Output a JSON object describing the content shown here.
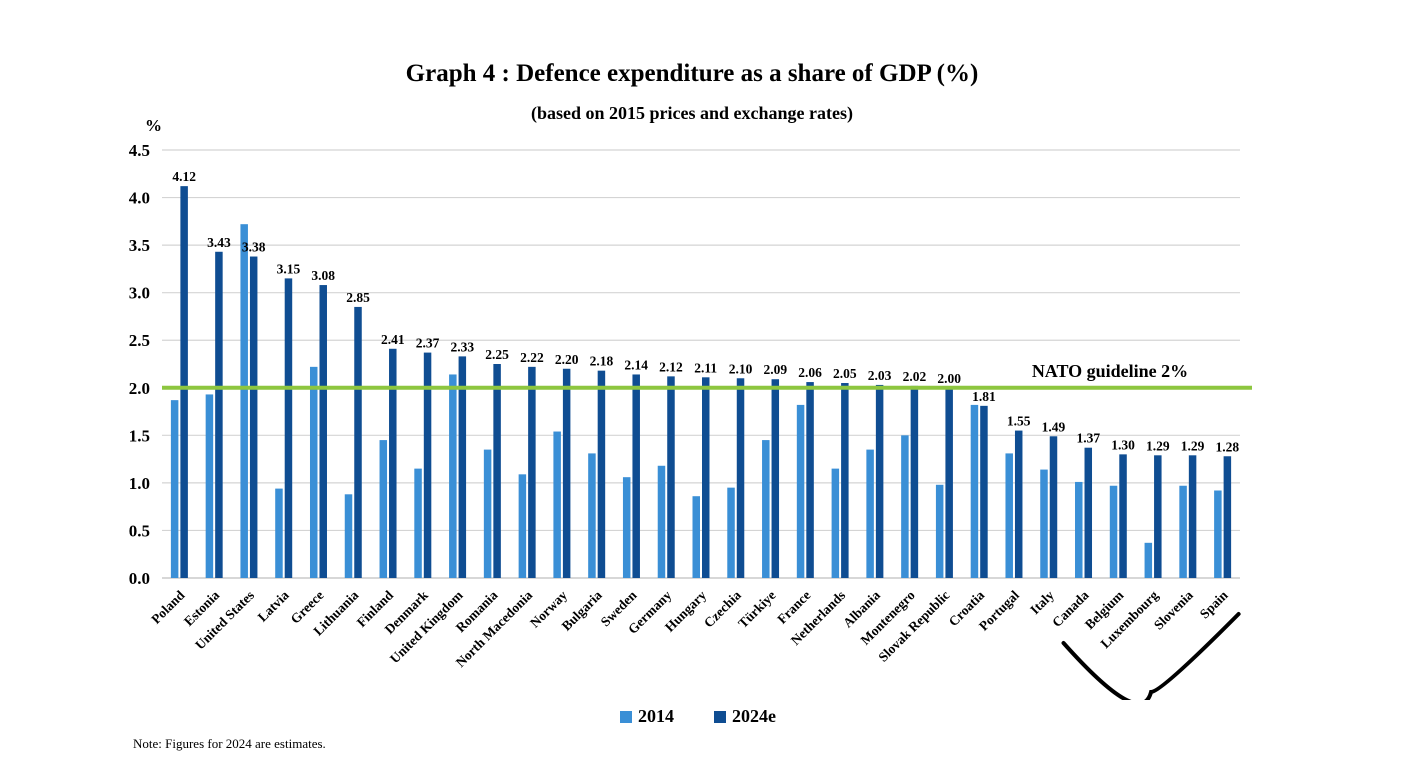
{
  "chart_data": {
    "type": "bar",
    "title": "Graph 4 : Defence expenditure as a share of GDP (%)",
    "subtitle": "(based on 2015 prices and exchange rates)",
    "ylabel": "%",
    "ylim": [
      0,
      4.5
    ],
    "yticks": [
      "0.0",
      "0.5",
      "1.0",
      "1.5",
      "2.0",
      "2.5",
      "3.0",
      "3.5",
      "4.0",
      "4.5"
    ],
    "grid": true,
    "legend_position": "bottom",
    "categories": [
      "Poland",
      "Estonia",
      "United States",
      "Latvia",
      "Greece",
      "Lithuania",
      "Finland",
      "Denmark",
      "United Kingdom",
      "Romania",
      "North Macedonia",
      "Norway",
      "Bulgaria",
      "Sweden",
      "Germany",
      "Hungary",
      "Czechia",
      "Türkiye",
      "France",
      "Netherlands",
      "Albania",
      "Montenegro",
      "Slovak Republic",
      "Croatia",
      "Portugal",
      "Italy",
      "Canada",
      "Belgium",
      "Luxembourg",
      "Slovenia",
      "Spain"
    ],
    "series": [
      {
        "name": "2014",
        "color": "#3a8fd6",
        "values": [
          1.87,
          1.93,
          3.72,
          0.94,
          2.22,
          0.88,
          1.45,
          1.15,
          2.14,
          1.35,
          1.09,
          1.54,
          1.31,
          1.06,
          1.18,
          0.86,
          0.95,
          1.45,
          1.82,
          1.15,
          1.35,
          1.5,
          0.98,
          1.82,
          1.31,
          1.14,
          1.01,
          0.97,
          0.37,
          0.97,
          0.92
        ]
      },
      {
        "name": "2024e",
        "color": "#0f4d92",
        "values": [
          4.12,
          3.43,
          3.38,
          3.15,
          3.08,
          2.85,
          2.41,
          2.37,
          2.33,
          2.25,
          2.22,
          2.2,
          2.18,
          2.14,
          2.12,
          2.11,
          2.1,
          2.09,
          2.06,
          2.05,
          2.03,
          2.02,
          2.0,
          1.81,
          1.55,
          1.49,
          1.37,
          1.3,
          1.29,
          1.29,
          1.28
        ]
      }
    ],
    "data_labels_2024e": [
      "4.12",
      "3.43",
      "3.38",
      "3.15",
      "3.08",
      "2.85",
      "2.41",
      "2.37",
      "2.33",
      "2.25",
      "2.22",
      "2.20",
      "2.18",
      "2.14",
      "2.12",
      "2.11",
      "2.10",
      "2.09",
      "2.06",
      "2.05",
      "2.03",
      "2.02",
      "2.00",
      "1.81",
      "1.55",
      "1.49",
      "1.37",
      "1.30",
      "1.29",
      "1.29",
      "1.28"
    ],
    "reference_line": {
      "value": 2.0,
      "label": "NATO guideline 2%",
      "color": "#8dc63f"
    },
    "annotation": {
      "shape": "curved-underline",
      "color": "#000000",
      "from_category": "Canada",
      "to_category": "Spain"
    }
  },
  "note": "Note: Figures for 2024 are estimates."
}
